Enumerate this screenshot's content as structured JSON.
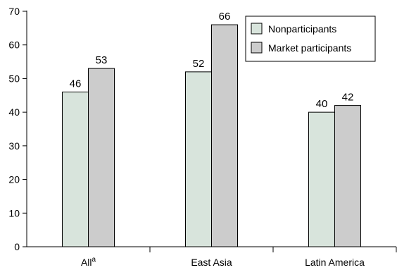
{
  "chart_data": {
    "type": "bar",
    "categories": [
      "All",
      "East Asia",
      "Latin America"
    ],
    "category_superscripts": [
      "a",
      "",
      ""
    ],
    "series": [
      {
        "name": "Nonparticipants",
        "values": [
          46,
          52,
          40
        ],
        "color": "#d8e4dc"
      },
      {
        "name": "Market participants",
        "values": [
          53,
          66,
          42
        ],
        "color": "#cccccc"
      }
    ],
    "ylim": [
      0,
      70
    ],
    "yticks": [
      0,
      10,
      20,
      30,
      40,
      50,
      60,
      70
    ],
    "title": "",
    "xlabel": "",
    "ylabel": "",
    "grid": false,
    "legend_position": "top-right"
  }
}
